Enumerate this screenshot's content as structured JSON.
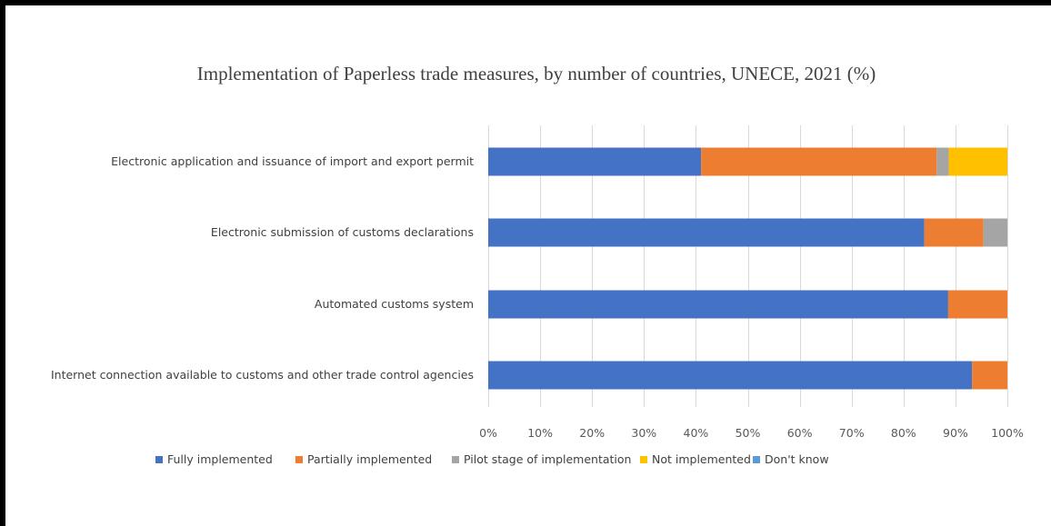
{
  "chart_data": {
    "type": "bar",
    "orientation": "horizontal",
    "stacked": true,
    "title": "Implementation of Paperless trade measures, by number of countries, UNECE, 2021 (%)",
    "xlabel": "",
    "ylabel": "",
    "xlim": [
      0,
      100
    ],
    "x_ticks": [
      "0%",
      "10%",
      "20%",
      "30%",
      "40%",
      "50%",
      "60%",
      "70%",
      "80%",
      "90%",
      "100%"
    ],
    "grid": "vertical",
    "legend_position": "bottom",
    "categories": [
      "Electronic application and issuance of import and export permit",
      "Electronic submission of customs declarations",
      "Automated customs system",
      "Internet connection available to customs and other trade control agencies"
    ],
    "series": [
      {
        "name": "Fully implemented",
        "color": "#4472c4",
        "values": [
          41,
          84,
          88.6,
          93.2
        ]
      },
      {
        "name": "Partially implemented",
        "color": "#ed7d31",
        "values": [
          45.4,
          11.4,
          11.4,
          6.8
        ]
      },
      {
        "name": "Pilot stage of implementation",
        "color": "#a5a5a5",
        "values": [
          2.3,
          4.6,
          0,
          0
        ]
      },
      {
        "name": "Not implemented",
        "color": "#ffc000",
        "values": [
          11.3,
          0,
          0,
          0
        ]
      },
      {
        "name": "Don't know",
        "color": "#5b9bd5",
        "values": [
          0,
          0,
          0,
          0
        ]
      }
    ]
  }
}
